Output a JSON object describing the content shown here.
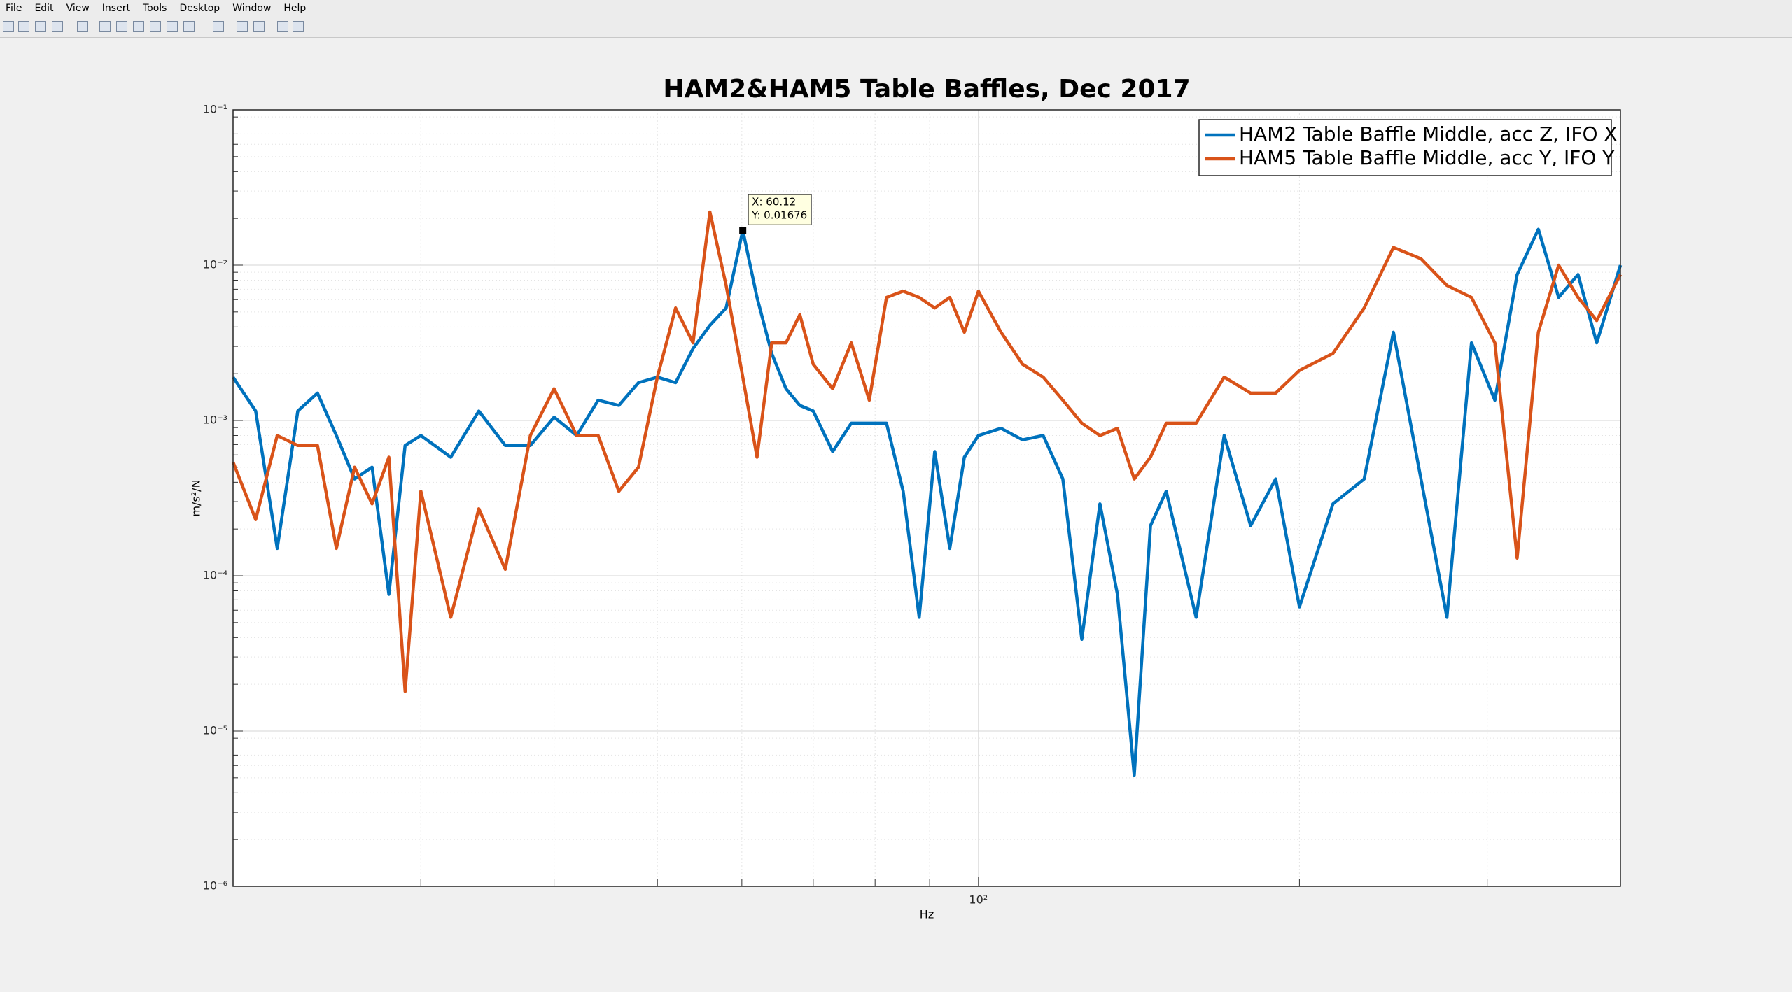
{
  "window": {
    "menu": [
      "File",
      "Edit",
      "View",
      "Insert",
      "Tools",
      "Desktop",
      "Window",
      "Help"
    ]
  },
  "chart_data": {
    "type": "line",
    "title": "HAM2&HAM5 Table Baffles, Dec 2017",
    "xlabel": "Hz",
    "ylabel": "m/s²/N",
    "xscale": "log",
    "yscale": "log",
    "grid": true,
    "legend": "northeast",
    "xlim": [
      20,
      400
    ],
    "xticks": [
      {
        "value": 100,
        "label": "10²"
      }
    ],
    "ylim": [
      1e-06,
      0.1
    ],
    "yticks": [
      {
        "value": 1e-06,
        "label": "10⁻⁶"
      },
      {
        "value": 1e-05,
        "label": "10⁻⁵"
      },
      {
        "value": 0.0001,
        "label": "10⁻⁴"
      },
      {
        "value": 0.001,
        "label": "10⁻³"
      },
      {
        "value": 0.01,
        "label": "10⁻²"
      },
      {
        "value": 0.1,
        "label": "10⁻¹"
      }
    ],
    "x": [
      20,
      21,
      22,
      23,
      24,
      25,
      26,
      27,
      28,
      29,
      30,
      32,
      34,
      36,
      38,
      40,
      42,
      44,
      46,
      48,
      50,
      52,
      54,
      56,
      58,
      60.12,
      62,
      64,
      66,
      68,
      70,
      73,
      76,
      79,
      82,
      85,
      88,
      91,
      94,
      97,
      100,
      105,
      110,
      115,
      120,
      125,
      130,
      135,
      140,
      145,
      150,
      160,
      170,
      180,
      190,
      200,
      215,
      230,
      245,
      260,
      275,
      290,
      305,
      320,
      335,
      350,
      365,
      380,
      400
    ],
    "series": [
      {
        "name": "HAM2 Table Baffle Middle, acc Z, IFO X",
        "color": "#0072bd",
        "values": [
          0.0019,
          0.00115,
          0.00015,
          0.00115,
          0.0015,
          0.0008,
          0.00042,
          0.0005,
          7.6e-05,
          0.00069,
          0.0008,
          0.00058,
          0.00115,
          0.00069,
          0.00069,
          0.00105,
          0.0008,
          0.00135,
          0.00125,
          0.00175,
          0.0019,
          0.00175,
          0.0029,
          0.0041,
          0.0053,
          0.01676,
          0.0062,
          0.0027,
          0.0016,
          0.00125,
          0.00115,
          0.00063,
          0.00096,
          0.00096,
          0.00096,
          0.00035,
          5.4e-05,
          0.00063,
          0.00015,
          0.00058,
          0.0008,
          0.00089,
          0.00075,
          0.0008,
          0.00042,
          3.9e-05,
          0.00029,
          7.6e-05,
          5.2e-06,
          0.00021,
          0.00035,
          5.4e-05,
          0.0008,
          0.00021,
          0.00042,
          6.3e-05,
          0.00029,
          0.00042,
          0.0037,
          0.00042,
          5.4e-05,
          0.00316,
          0.00135,
          0.0087,
          0.017,
          0.0062,
          0.0087,
          0.00316,
          0.01
        ]
      },
      {
        "name": "HAM5 Table Baffle Middle, acc Y, IFO Y",
        "color": "#d95319",
        "values": [
          0.00054,
          0.00023,
          0.0008,
          0.00069,
          0.00069,
          0.00015,
          0.0005,
          0.00029,
          0.00058,
          1.8e-05,
          0.00035,
          5.4e-05,
          0.00027,
          0.00011,
          0.0008,
          0.0016,
          0.0008,
          0.0008,
          0.00035,
          0.0005,
          0.0019,
          0.0053,
          0.00316,
          0.022,
          0.0074,
          0.0019,
          0.00058,
          0.00316,
          0.00316,
          0.0048,
          0.0023,
          0.0016,
          0.00316,
          0.00135,
          0.0062,
          0.0068,
          0.0062,
          0.0053,
          0.0062,
          0.0037,
          0.0068,
          0.0037,
          0.0023,
          0.0019,
          0.00135,
          0.00096,
          0.0008,
          0.00089,
          0.00042,
          0.00058,
          0.00096,
          0.00096,
          0.0019,
          0.0015,
          0.0015,
          0.0021,
          0.0027,
          0.0053,
          0.013,
          0.011,
          0.0074,
          0.0062,
          0.00316,
          0.00013,
          0.0037,
          0.01,
          0.0062,
          0.0044,
          0.0087
        ]
      }
    ],
    "annotation": {
      "x": 60.12,
      "y": 0.01676,
      "lines": [
        "X: 60.12",
        "Y: 0.01676"
      ]
    }
  }
}
